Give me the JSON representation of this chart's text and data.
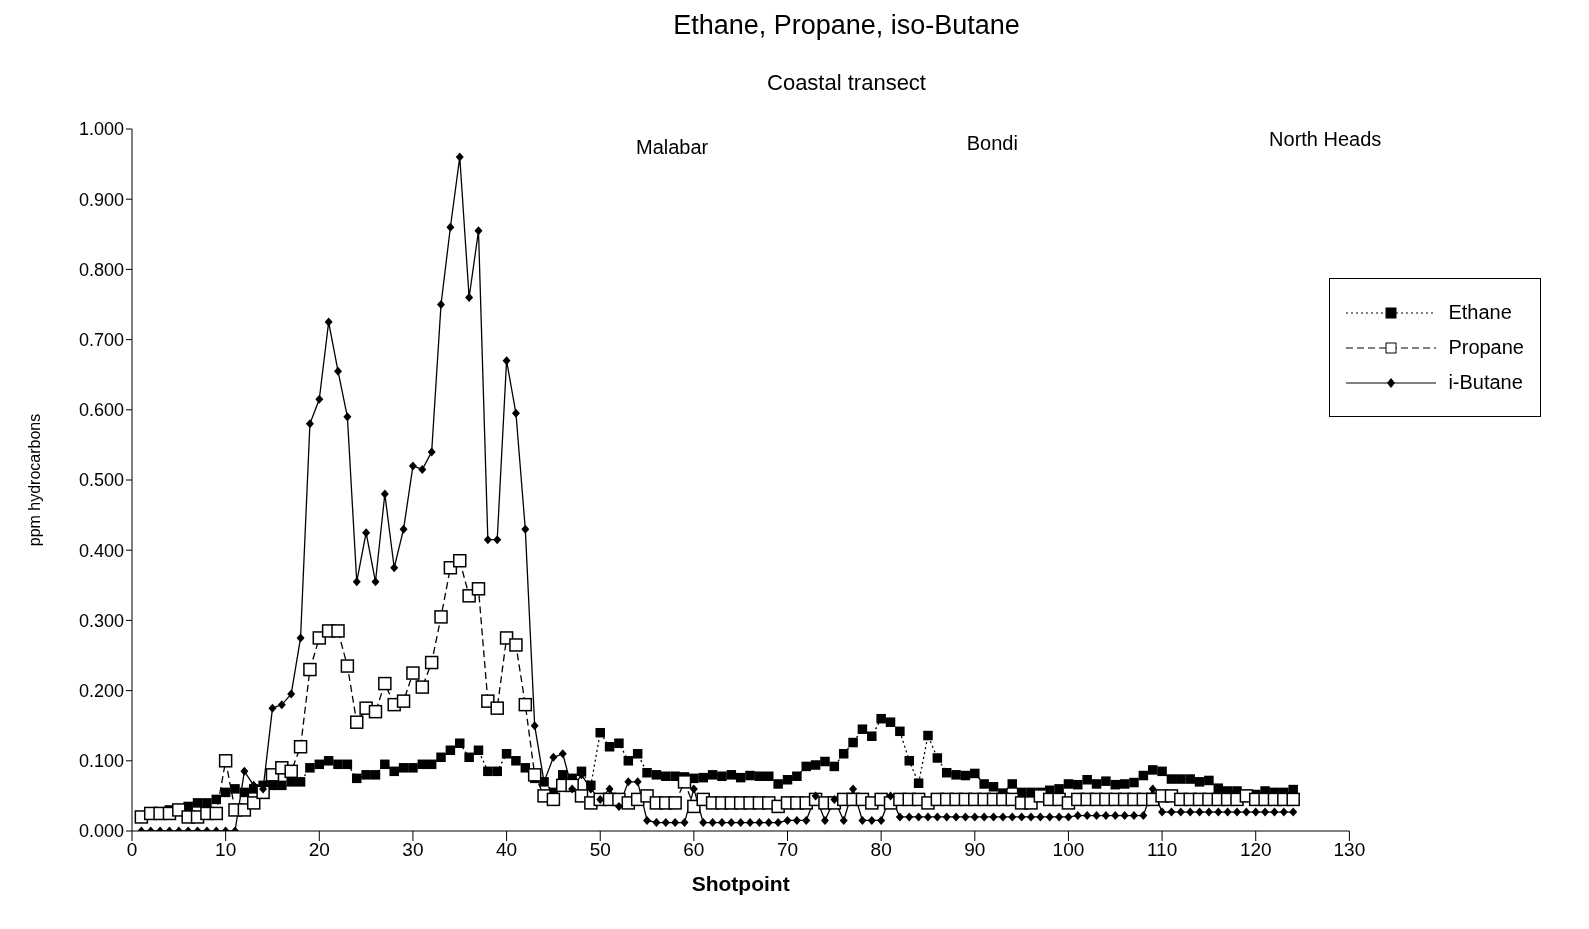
{
  "chart_data": {
    "type": "line",
    "title": "Ethane, Propane, iso-Butane",
    "subtitle": "Coastal transect",
    "xlabel": "Shotpoint",
    "ylabel": "ppm hydrocarbons",
    "x": [
      1,
      2,
      3,
      4,
      5,
      6,
      7,
      8,
      9,
      10,
      11,
      12,
      13,
      14,
      15,
      16,
      17,
      18,
      19,
      20,
      21,
      22,
      23,
      24,
      25,
      26,
      27,
      28,
      29,
      30,
      31,
      32,
      33,
      34,
      35,
      36,
      37,
      38,
      39,
      40,
      41,
      42,
      43,
      44,
      45,
      46,
      47,
      48,
      49,
      50,
      51,
      52,
      53,
      54,
      55,
      56,
      57,
      58,
      59,
      60,
      61,
      62,
      63,
      64,
      65,
      66,
      67,
      68,
      69,
      70,
      71,
      72,
      73,
      74,
      75,
      76,
      77,
      78,
      79,
      80,
      81,
      82,
      83,
      84,
      85,
      86,
      87,
      88,
      89,
      90,
      91,
      92,
      93,
      94,
      95,
      96,
      97,
      98,
      99,
      100,
      101,
      102,
      103,
      104,
      105,
      106,
      107,
      108,
      109,
      110,
      111,
      112,
      113,
      114,
      115,
      116,
      117,
      118,
      119,
      120,
      121,
      122,
      123,
      124
    ],
    "series": [
      {
        "name": "Ethane",
        "color": "#000000",
        "marker": "square",
        "line_style": "dotted",
        "values": [
          0.02,
          0.025,
          0.025,
          0.03,
          0.03,
          0.035,
          0.04,
          0.04,
          0.045,
          0.055,
          0.06,
          0.055,
          0.06,
          0.065,
          0.065,
          0.065,
          0.07,
          0.07,
          0.09,
          0.095,
          0.1,
          0.095,
          0.095,
          0.075,
          0.08,
          0.08,
          0.095,
          0.085,
          0.09,
          0.09,
          0.095,
          0.095,
          0.105,
          0.115,
          0.125,
          0.105,
          0.115,
          0.085,
          0.085,
          0.11,
          0.1,
          0.09,
          0.075,
          0.07,
          0.055,
          0.08,
          0.075,
          0.085,
          0.065,
          0.14,
          0.12,
          0.125,
          0.1,
          0.11,
          0.083,
          0.08,
          0.078,
          0.078,
          0.077,
          0.075,
          0.076,
          0.08,
          0.078,
          0.08,
          0.076,
          0.079,
          0.078,
          0.078,
          0.067,
          0.073,
          0.078,
          0.092,
          0.094,
          0.099,
          0.092,
          0.11,
          0.126,
          0.145,
          0.135,
          0.16,
          0.155,
          0.142,
          0.1,
          0.068,
          0.136,
          0.104,
          0.083,
          0.08,
          0.079,
          0.082,
          0.067,
          0.063,
          0.054,
          0.067,
          0.055,
          0.055,
          0.055,
          0.058,
          0.06,
          0.067,
          0.066,
          0.073,
          0.067,
          0.071,
          0.066,
          0.067,
          0.069,
          0.079,
          0.087,
          0.085,
          0.074,
          0.074,
          0.074,
          0.07,
          0.072,
          0.061,
          0.057,
          0.057,
          0.052,
          0.052,
          0.057,
          0.055,
          0.055,
          0.059
        ]
      },
      {
        "name": "Propane",
        "color": "#000000",
        "marker": "square",
        "line_style": "dashed",
        "values": [
          0.02,
          0.025,
          0.025,
          0.025,
          0.03,
          0.02,
          0.02,
          0.025,
          0.025,
          0.1,
          0.03,
          0.03,
          0.04,
          0.055,
          0.08,
          0.09,
          0.085,
          0.12,
          0.23,
          0.275,
          0.285,
          0.285,
          0.235,
          0.155,
          0.175,
          0.17,
          0.21,
          0.18,
          0.185,
          0.225,
          0.205,
          0.24,
          0.305,
          0.375,
          0.385,
          0.335,
          0.345,
          0.185,
          0.175,
          0.275,
          0.265,
          0.18,
          0.08,
          0.05,
          0.045,
          0.065,
          0.065,
          0.05,
          0.04,
          0.045,
          0.045,
          0.045,
          0.04,
          0.045,
          0.05,
          0.04,
          0.04,
          0.04,
          0.07,
          0.035,
          0.045,
          0.04,
          0.04,
          0.04,
          0.04,
          0.04,
          0.04,
          0.04,
          0.035,
          0.04,
          0.04,
          0.04,
          0.045,
          0.04,
          0.04,
          0.045,
          0.045,
          0.045,
          0.04,
          0.045,
          0.04,
          0.045,
          0.045,
          0.045,
          0.04,
          0.045,
          0.045,
          0.045,
          0.045,
          0.045,
          0.045,
          0.045,
          0.045,
          0.045,
          0.04,
          0.04,
          0.05,
          0.045,
          0.045,
          0.04,
          0.045,
          0.045,
          0.045,
          0.045,
          0.045,
          0.045,
          0.045,
          0.045,
          0.045,
          0.05,
          0.05,
          0.045,
          0.045,
          0.045,
          0.045,
          0.045,
          0.045,
          0.045,
          0.05,
          0.045,
          0.045,
          0.045,
          0.045,
          0.045
        ]
      },
      {
        "name": "i-Butane",
        "color": "#000000",
        "marker": "diamond",
        "line_style": "solid",
        "values": [
          0,
          0,
          0,
          0,
          0,
          0,
          0,
          0,
          0,
          0,
          0,
          0.085,
          0.065,
          0.06,
          0.175,
          0.18,
          0.195,
          0.275,
          0.58,
          0.615,
          0.725,
          0.655,
          0.59,
          0.355,
          0.425,
          0.355,
          0.48,
          0.375,
          0.43,
          0.52,
          0.515,
          0.54,
          0.75,
          0.86,
          0.96,
          0.76,
          0.855,
          0.415,
          0.415,
          0.67,
          0.595,
          0.43,
          0.15,
          0.07,
          0.105,
          0.11,
          0.06,
          0.08,
          0.06,
          0.045,
          0.06,
          0.035,
          0.07,
          0.07,
          0.015,
          0.012,
          0.012,
          0.012,
          0.012,
          0.06,
          0.012,
          0.012,
          0.012,
          0.012,
          0.012,
          0.012,
          0.012,
          0.012,
          0.012,
          0.015,
          0.015,
          0.015,
          0.05,
          0.015,
          0.045,
          0.015,
          0.06,
          0.015,
          0.015,
          0.015,
          0.05,
          0.02,
          0.02,
          0.02,
          0.02,
          0.02,
          0.02,
          0.02,
          0.02,
          0.02,
          0.02,
          0.02,
          0.02,
          0.02,
          0.02,
          0.02,
          0.02,
          0.02,
          0.02,
          0.02,
          0.022,
          0.022,
          0.022,
          0.022,
          0.022,
          0.022,
          0.022,
          0.022,
          0.06,
          0.027,
          0.027,
          0.027,
          0.027,
          0.027,
          0.027,
          0.027,
          0.027,
          0.027,
          0.027,
          0.027,
          0.027,
          0.027,
          0.027,
          0.027
        ]
      }
    ],
    "xlim": [
      0,
      130
    ],
    "xticks": [
      0,
      10,
      20,
      30,
      40,
      50,
      60,
      70,
      80,
      90,
      100,
      110,
      120,
      130
    ],
    "ylim": [
      0,
      1
    ],
    "yticks": [
      {
        "value": 0,
        "label": "0.000"
      },
      {
        "value": 0.1,
        "label": "0.100"
      },
      {
        "value": 0.2,
        "label": "0.200"
      },
      {
        "value": 0.3,
        "label": "0.300"
      },
      {
        "value": 0.4,
        "label": "0.400"
      },
      {
        "value": 0.5,
        "label": "0.500"
      },
      {
        "value": 0.6,
        "label": "0.600"
      },
      {
        "value": 0.7,
        "label": "0.700"
      },
      {
        "value": 0.8,
        "label": "0.800"
      },
      {
        "value": 0.9,
        "label": "0.900"
      },
      {
        "value": 1,
        "label": "1.000"
      }
    ],
    "annotations": [
      "Malabar",
      "Bondi",
      "North Heads"
    ],
    "grid": false,
    "legend": "right"
  }
}
